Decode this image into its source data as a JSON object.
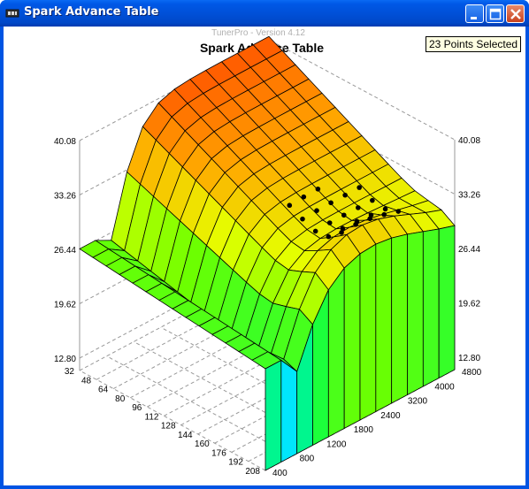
{
  "window": {
    "title": "Spark Advance Table"
  },
  "watermark": "TunerPro - Version 4.12",
  "selection_badge": "23 Points Selected",
  "colors": {
    "titlebar": "#0054e3",
    "badge_bg": "#ffffe1",
    "surface_low": "#00e0ff",
    "surface_high": "#ff5a00"
  },
  "icons": [
    "tunerpro-app-icon",
    "minimize-icon",
    "maximize-icon",
    "close-icon"
  ],
  "chart_data": {
    "type": "surface3d",
    "title": "Spark Advance Table",
    "z_ticks": [
      "40.08",
      "33.26",
      "26.44",
      "19.62",
      "12.80"
    ],
    "x_ticks": [
      "32",
      "48",
      "64",
      "80",
      "96",
      "112",
      "128",
      "144",
      "160",
      "176",
      "192",
      "208"
    ],
    "y_ticks": [
      "400",
      "800",
      "1200",
      "1800",
      "2400",
      "3200",
      "4000",
      "4800"
    ],
    "z_range": [
      12.8,
      40.08
    ],
    "x_range": [
      32,
      208
    ],
    "y_range": [
      400,
      4800
    ],
    "selected_points": 23,
    "grid": true
  }
}
